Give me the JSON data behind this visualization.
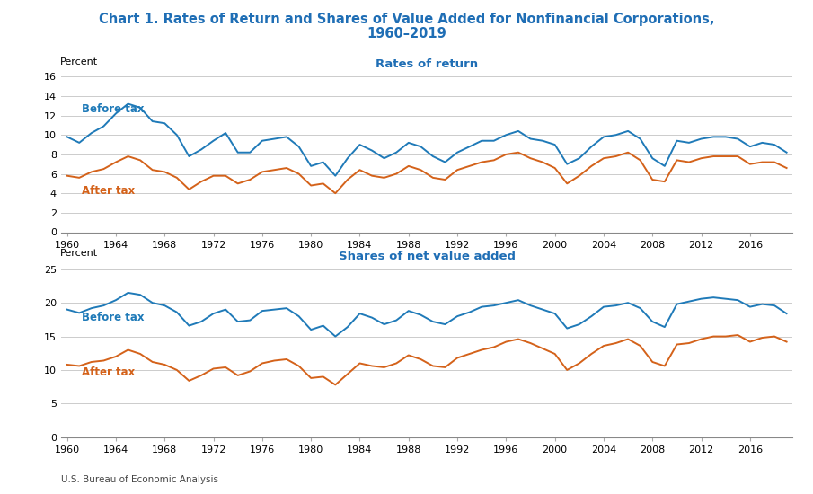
{
  "title_line1": "Chart 1. Rates of Return and Shares of Value Added for Nonfinancial Corporations,",
  "title_line2": "1960–2019",
  "title_color": "#1f6eb5",
  "subtitle1": "Rates of return",
  "subtitle2": "Shares of net value added",
  "subtitle_color": "#1f6eb5",
  "ylabel": "Percent",
  "source": "U.S. Bureau of Economic Analysis",
  "blue_color": "#1f7ab8",
  "orange_color": "#d4621a",
  "years": [
    1960,
    1961,
    1962,
    1963,
    1964,
    1965,
    1966,
    1967,
    1968,
    1969,
    1970,
    1971,
    1972,
    1973,
    1974,
    1975,
    1976,
    1977,
    1978,
    1979,
    1980,
    1981,
    1982,
    1983,
    1984,
    1985,
    1986,
    1987,
    1988,
    1989,
    1990,
    1991,
    1992,
    1993,
    1994,
    1995,
    1996,
    1997,
    1998,
    1999,
    2000,
    2001,
    2002,
    2003,
    2004,
    2005,
    2006,
    2007,
    2008,
    2009,
    2010,
    2011,
    2012,
    2013,
    2014,
    2015,
    2016,
    2017,
    2018,
    2019
  ],
  "ror_before_tax": [
    9.8,
    9.2,
    10.2,
    10.9,
    12.2,
    13.2,
    12.8,
    11.4,
    11.2,
    10.0,
    7.8,
    8.5,
    9.4,
    10.2,
    8.2,
    8.2,
    9.4,
    9.6,
    9.8,
    8.8,
    6.8,
    7.2,
    5.8,
    7.6,
    9.0,
    8.4,
    7.6,
    8.2,
    9.2,
    8.8,
    7.8,
    7.2,
    8.2,
    8.8,
    9.4,
    9.4,
    10.0,
    10.4,
    9.6,
    9.4,
    9.0,
    7.0,
    7.6,
    8.8,
    9.8,
    10.0,
    10.4,
    9.6,
    7.6,
    6.8,
    9.4,
    9.2,
    9.6,
    9.8,
    9.8,
    9.6,
    8.8,
    9.2,
    9.0,
    8.2
  ],
  "ror_after_tax": [
    5.8,
    5.6,
    6.2,
    6.5,
    7.2,
    7.8,
    7.4,
    6.4,
    6.2,
    5.6,
    4.4,
    5.2,
    5.8,
    5.8,
    5.0,
    5.4,
    6.2,
    6.4,
    6.6,
    6.0,
    4.8,
    5.0,
    4.0,
    5.4,
    6.4,
    5.8,
    5.6,
    6.0,
    6.8,
    6.4,
    5.6,
    5.4,
    6.4,
    6.8,
    7.2,
    7.4,
    8.0,
    8.2,
    7.6,
    7.2,
    6.6,
    5.0,
    5.8,
    6.8,
    7.6,
    7.8,
    8.2,
    7.4,
    5.4,
    5.2,
    7.4,
    7.2,
    7.6,
    7.8,
    7.8,
    7.8,
    7.0,
    7.2,
    7.2,
    6.6
  ],
  "va_before_tax": [
    19.0,
    18.5,
    19.2,
    19.6,
    20.4,
    21.5,
    21.2,
    20.0,
    19.6,
    18.6,
    16.6,
    17.2,
    18.4,
    19.0,
    17.2,
    17.4,
    18.8,
    19.0,
    19.2,
    18.0,
    16.0,
    16.6,
    15.0,
    16.4,
    18.4,
    17.8,
    16.8,
    17.4,
    18.8,
    18.2,
    17.2,
    16.8,
    18.0,
    18.6,
    19.4,
    19.6,
    20.0,
    20.4,
    19.6,
    19.0,
    18.4,
    16.2,
    16.8,
    18.0,
    19.4,
    19.6,
    20.0,
    19.2,
    17.2,
    16.4,
    19.8,
    20.2,
    20.6,
    20.8,
    20.6,
    20.4,
    19.4,
    19.8,
    19.6,
    18.4
  ],
  "va_after_tax": [
    10.8,
    10.6,
    11.2,
    11.4,
    12.0,
    13.0,
    12.4,
    11.2,
    10.8,
    10.0,
    8.4,
    9.2,
    10.2,
    10.4,
    9.2,
    9.8,
    11.0,
    11.4,
    11.6,
    10.6,
    8.8,
    9.0,
    7.8,
    9.4,
    11.0,
    10.6,
    10.4,
    11.0,
    12.2,
    11.6,
    10.6,
    10.4,
    11.8,
    12.4,
    13.0,
    13.4,
    14.2,
    14.6,
    14.0,
    13.2,
    12.4,
    10.0,
    11.0,
    12.4,
    13.6,
    14.0,
    14.6,
    13.6,
    11.2,
    10.6,
    13.8,
    14.0,
    14.6,
    15.0,
    15.0,
    15.2,
    14.2,
    14.8,
    15.0,
    14.2
  ],
  "ror_ylim": [
    0,
    16
  ],
  "ror_yticks": [
    0,
    2,
    4,
    6,
    8,
    10,
    12,
    14,
    16
  ],
  "va_ylim": [
    0,
    25
  ],
  "va_yticks": [
    0,
    5,
    10,
    15,
    20,
    25
  ],
  "xticks": [
    1960,
    1964,
    1968,
    1972,
    1976,
    1980,
    1984,
    1988,
    1992,
    1996,
    2000,
    2004,
    2008,
    2012,
    2016
  ]
}
